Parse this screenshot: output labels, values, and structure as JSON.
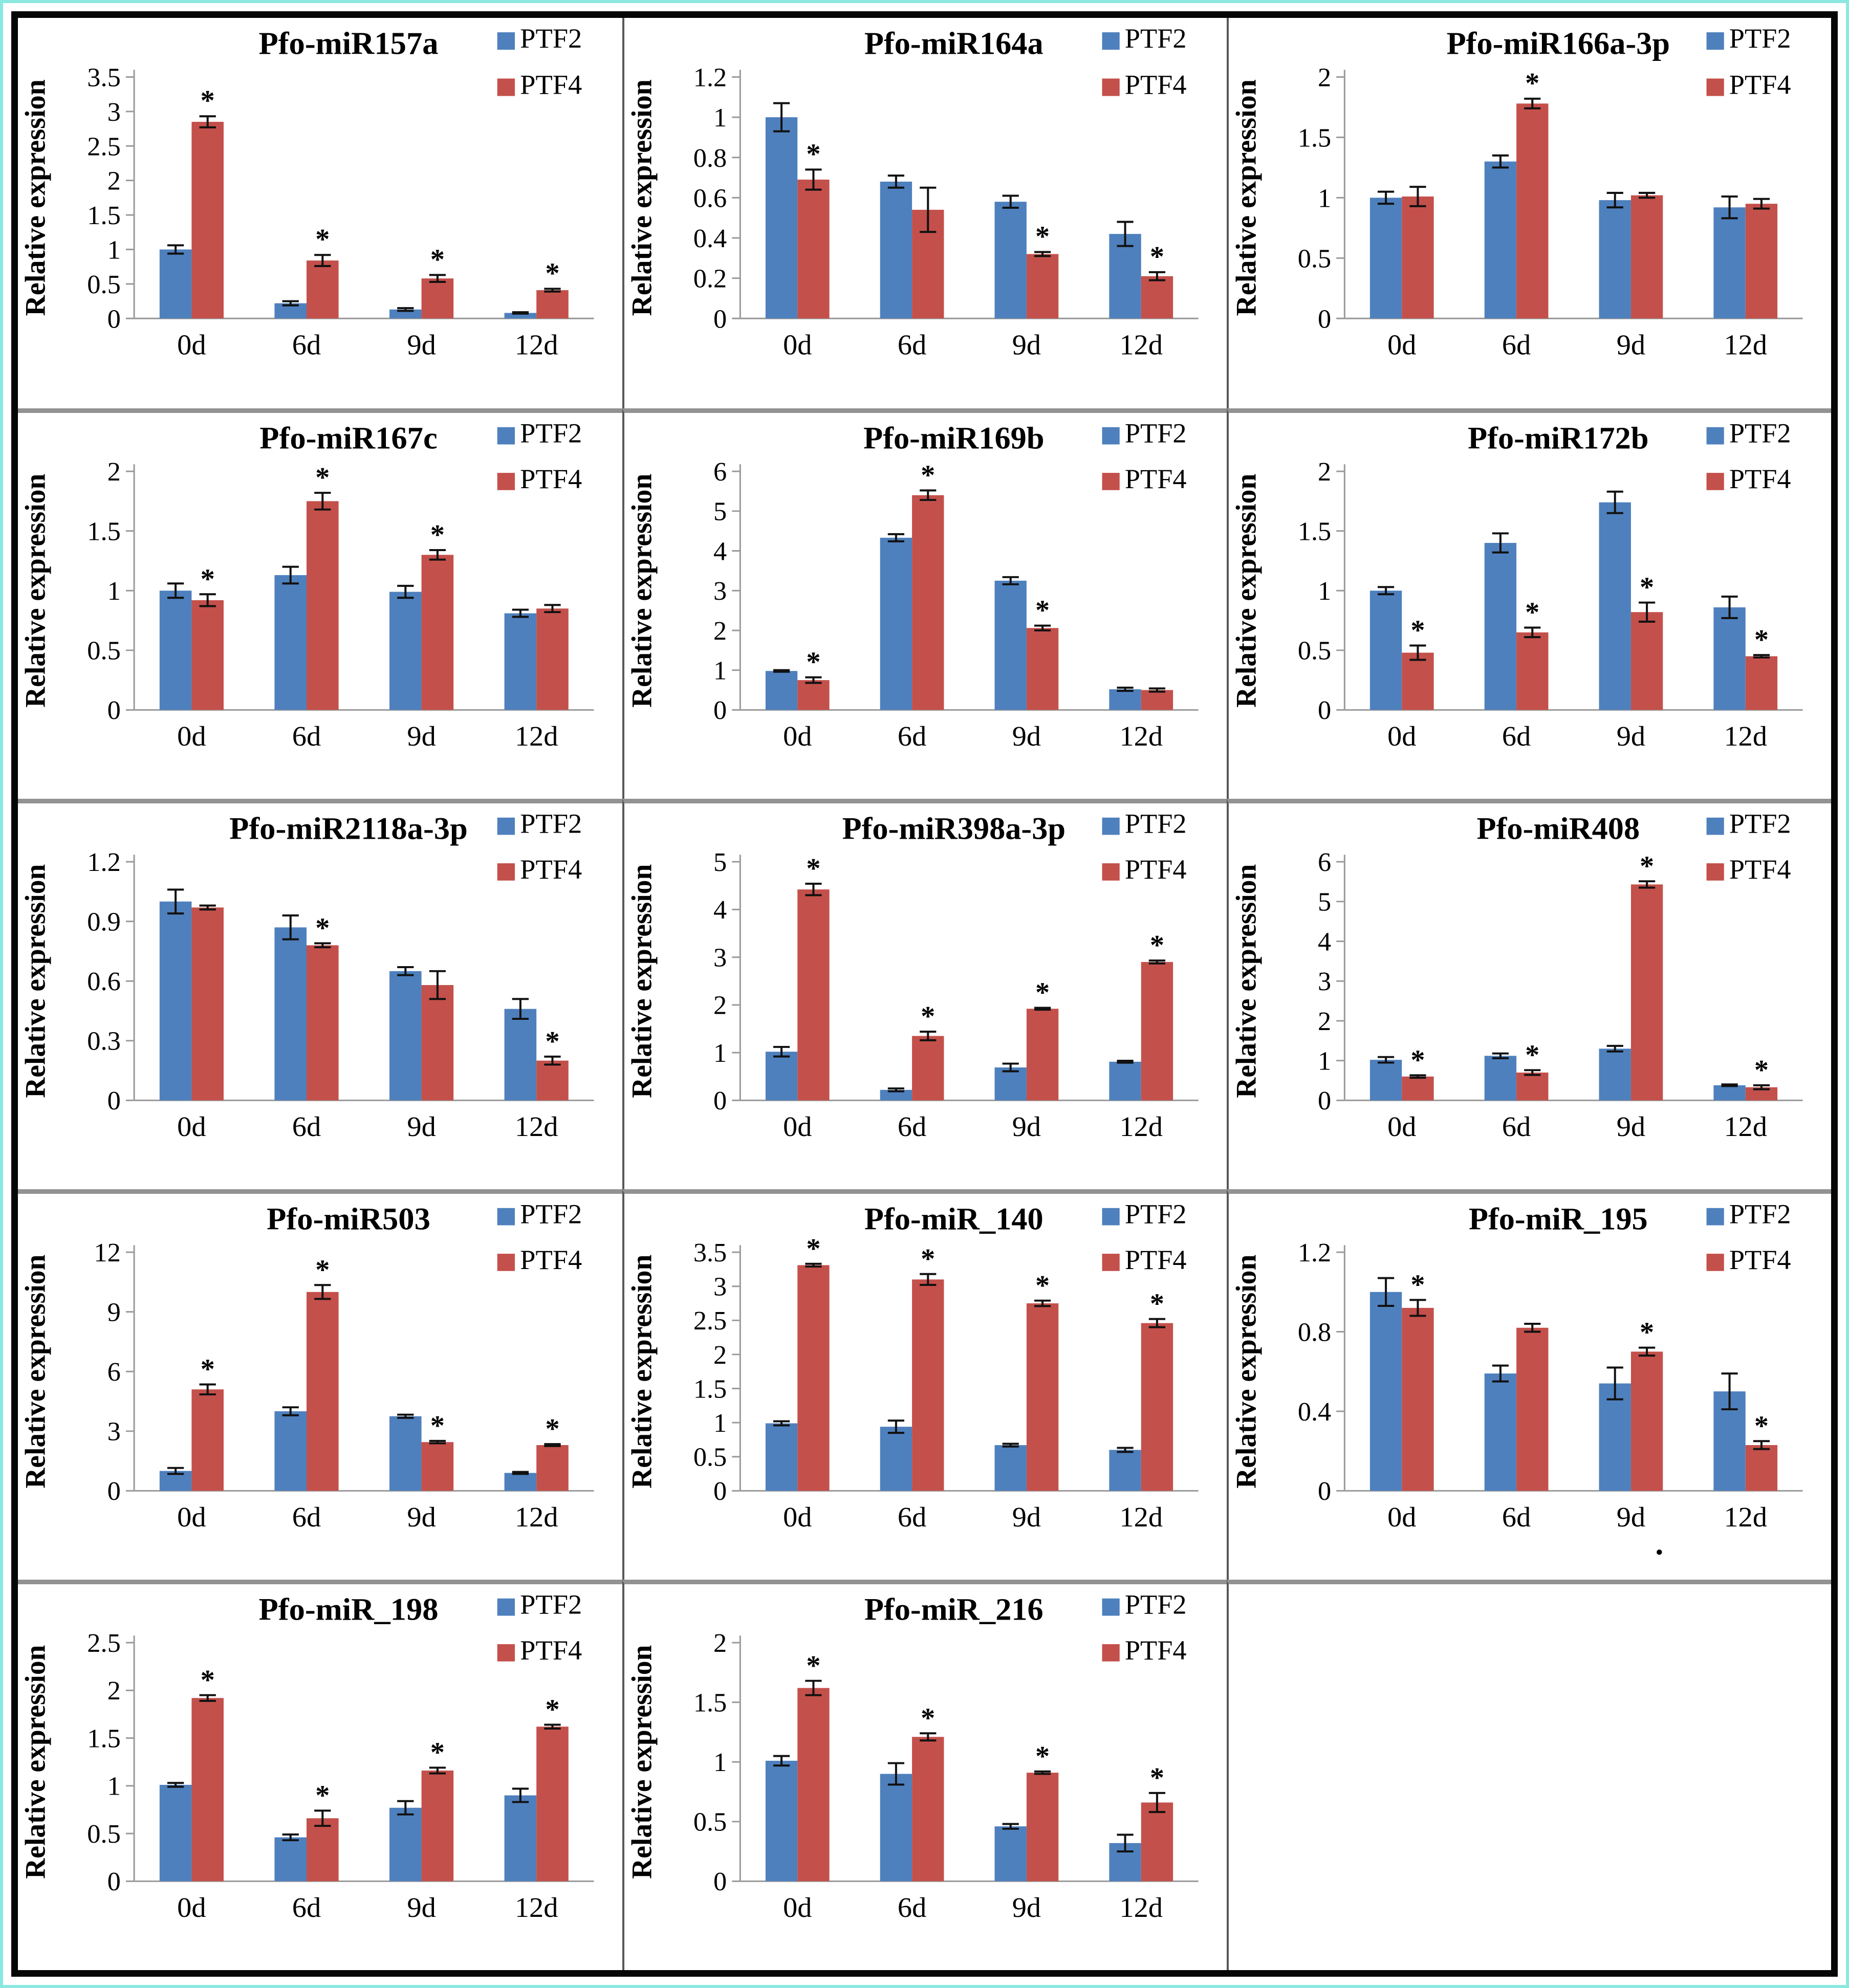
{
  "figure": {
    "ylabel": "Relative expression",
    "categories": [
      "0d",
      "6d",
      "9d",
      "12d"
    ],
    "legend": [
      "PTF2",
      "PTF4"
    ],
    "colors": {
      "ptf2": "#4E80BD",
      "ptf4": "#C4504B",
      "axis": "#9a9a9a",
      "error_bar": "#111111",
      "text": "#000000",
      "outer_frame_cyan": "#8ae8e0",
      "outer_frame_black": "#060606",
      "row_divider": "#929292",
      "col_divider": "#585858"
    },
    "sig_mark": "*"
  },
  "chart_data": [
    {
      "type": "bar",
      "title": "Pfo-miR157a",
      "ylabel": "Relative expression",
      "categories": [
        "0d",
        "6d",
        "9d",
        "12d"
      ],
      "ylim": [
        0,
        3.5
      ],
      "ytick_step": 0.5,
      "legend_position": "top-right",
      "grid": false,
      "series": [
        {
          "name": "PTF2",
          "values": [
            1.0,
            0.22,
            0.13,
            0.08
          ],
          "errors": [
            0.06,
            0.03,
            0.02,
            0.01
          ],
          "sig": [
            false,
            false,
            false,
            false
          ]
        },
        {
          "name": "PTF4",
          "values": [
            2.85,
            0.84,
            0.58,
            0.41
          ],
          "errors": [
            0.08,
            0.08,
            0.05,
            0.02
          ],
          "sig": [
            true,
            true,
            true,
            true
          ]
        }
      ]
    },
    {
      "type": "bar",
      "title": "Pfo-miR164a",
      "ylabel": "Relative expression",
      "categories": [
        "0d",
        "6d",
        "9d",
        "12d"
      ],
      "ylim": [
        0,
        1.2
      ],
      "ytick_step": 0.2,
      "legend_position": "top-right",
      "grid": false,
      "series": [
        {
          "name": "PTF2",
          "values": [
            1.0,
            0.68,
            0.58,
            0.42
          ],
          "errors": [
            0.07,
            0.03,
            0.03,
            0.06
          ],
          "sig": [
            false,
            false,
            false,
            false
          ]
        },
        {
          "name": "PTF4",
          "values": [
            0.69,
            0.54,
            0.32,
            0.21
          ],
          "errors": [
            0.05,
            0.11,
            0.01,
            0.02
          ],
          "sig": [
            true,
            false,
            true,
            true
          ]
        }
      ]
    },
    {
      "type": "bar",
      "title": "Pfo-miR166a-3p",
      "ylabel": "Relative expression",
      "categories": [
        "0d",
        "6d",
        "9d",
        "12d"
      ],
      "ylim": [
        0,
        2
      ],
      "ytick_step": 0.5,
      "legend_position": "top-right",
      "grid": false,
      "series": [
        {
          "name": "PTF2",
          "values": [
            1.0,
            1.3,
            0.98,
            0.92
          ],
          "errors": [
            0.05,
            0.05,
            0.06,
            0.09
          ],
          "sig": [
            false,
            false,
            false,
            false
          ]
        },
        {
          "name": "PTF4",
          "values": [
            1.01,
            1.78,
            1.02,
            0.95
          ],
          "errors": [
            0.08,
            0.04,
            0.02,
            0.04
          ],
          "sig": [
            false,
            true,
            false,
            false
          ]
        }
      ]
    },
    {
      "type": "bar",
      "title": "Pfo-miR167c",
      "ylabel": "Relative expression",
      "categories": [
        "0d",
        "6d",
        "9d",
        "12d"
      ],
      "ylim": [
        0,
        2
      ],
      "ytick_step": 0.5,
      "legend_position": "top-right",
      "grid": false,
      "series": [
        {
          "name": "PTF2",
          "values": [
            1.0,
            1.13,
            0.99,
            0.81
          ],
          "errors": [
            0.06,
            0.07,
            0.05,
            0.03
          ],
          "sig": [
            false,
            false,
            false,
            false
          ]
        },
        {
          "name": "PTF4",
          "values": [
            0.92,
            1.75,
            1.3,
            0.85
          ],
          "errors": [
            0.05,
            0.07,
            0.04,
            0.03
          ],
          "sig": [
            true,
            true,
            true,
            false
          ]
        }
      ]
    },
    {
      "type": "bar",
      "title": "Pfo-miR169b",
      "ylabel": "Relative expression",
      "categories": [
        "0d",
        "6d",
        "9d",
        "12d"
      ],
      "ylim": [
        0,
        6
      ],
      "ytick_step": 1,
      "legend_position": "top-right",
      "grid": false,
      "series": [
        {
          "name": "PTF2",
          "values": [
            0.98,
            4.33,
            3.25,
            0.52
          ],
          "errors": [
            0.02,
            0.09,
            0.09,
            0.04
          ],
          "sig": [
            false,
            false,
            false,
            false
          ]
        },
        {
          "name": "PTF4",
          "values": [
            0.75,
            5.4,
            2.06,
            0.5
          ],
          "errors": [
            0.07,
            0.12,
            0.06,
            0.04
          ],
          "sig": [
            true,
            true,
            true,
            false
          ]
        }
      ]
    },
    {
      "type": "bar",
      "title": "Pfo-miR172b",
      "ylabel": "Relative expression",
      "categories": [
        "0d",
        "6d",
        "9d",
        "12d"
      ],
      "ylim": [
        0,
        2
      ],
      "ytick_step": 0.5,
      "legend_position": "top-right",
      "grid": false,
      "series": [
        {
          "name": "PTF2",
          "values": [
            1.0,
            1.4,
            1.74,
            0.86
          ],
          "errors": [
            0.03,
            0.08,
            0.09,
            0.09
          ],
          "sig": [
            false,
            false,
            false,
            false
          ]
        },
        {
          "name": "PTF4",
          "values": [
            0.48,
            0.65,
            0.82,
            0.45
          ],
          "errors": [
            0.06,
            0.04,
            0.08,
            0.01
          ],
          "sig": [
            true,
            true,
            true,
            true
          ]
        }
      ]
    },
    {
      "type": "bar",
      "title": "Pfo-miR2118a-3p",
      "ylabel": "Relative expression",
      "categories": [
        "0d",
        "6d",
        "9d",
        "12d"
      ],
      "ylim": [
        0,
        1.2
      ],
      "ytick_step": 0.3,
      "legend_position": "top-right",
      "grid": false,
      "series": [
        {
          "name": "PTF2",
          "values": [
            1.0,
            0.87,
            0.65,
            0.46
          ],
          "errors": [
            0.06,
            0.06,
            0.02,
            0.05
          ],
          "sig": [
            false,
            false,
            false,
            false
          ]
        },
        {
          "name": "PTF4",
          "values": [
            0.97,
            0.78,
            0.58,
            0.2
          ],
          "errors": [
            0.01,
            0.01,
            0.07,
            0.02
          ],
          "sig": [
            false,
            true,
            false,
            true
          ]
        }
      ]
    },
    {
      "type": "bar",
      "title": "Pfo-miR398a-3p",
      "ylabel": "Relative expression",
      "categories": [
        "0d",
        "6d",
        "9d",
        "12d"
      ],
      "ylim": [
        0,
        5
      ],
      "ytick_step": 1,
      "legend_position": "top-right",
      "grid": false,
      "series": [
        {
          "name": "PTF2",
          "values": [
            1.02,
            0.22,
            0.69,
            0.81
          ],
          "errors": [
            0.1,
            0.03,
            0.08,
            0.02
          ],
          "sig": [
            false,
            false,
            false,
            false
          ]
        },
        {
          "name": "PTF4",
          "values": [
            4.42,
            1.35,
            1.92,
            2.9
          ],
          "errors": [
            0.12,
            0.09,
            0.02,
            0.03
          ],
          "sig": [
            true,
            true,
            true,
            true
          ]
        }
      ]
    },
    {
      "type": "bar",
      "title": "Pfo-miR408",
      "ylabel": "Relative expression",
      "categories": [
        "0d",
        "6d",
        "9d",
        "12d"
      ],
      "ylim": [
        0,
        6
      ],
      "ytick_step": 1,
      "legend_position": "top-right",
      "grid": false,
      "series": [
        {
          "name": "PTF2",
          "values": [
            1.02,
            1.12,
            1.3,
            0.38
          ],
          "errors": [
            0.07,
            0.06,
            0.07,
            0.02
          ],
          "sig": [
            false,
            false,
            false,
            false
          ]
        },
        {
          "name": "PTF4",
          "values": [
            0.6,
            0.7,
            5.43,
            0.33
          ],
          "errors": [
            0.03,
            0.06,
            0.08,
            0.05
          ],
          "sig": [
            true,
            true,
            true,
            true
          ]
        }
      ]
    },
    {
      "type": "bar",
      "title": "Pfo-miR503",
      "ylabel": "Relative expression",
      "categories": [
        "0d",
        "6d",
        "9d",
        "12d"
      ],
      "ylim": [
        0,
        12
      ],
      "ytick_step": 3,
      "legend_position": "top-right",
      "grid": false,
      "series": [
        {
          "name": "PTF2",
          "values": [
            1.0,
            4.0,
            3.75,
            0.9
          ],
          "errors": [
            0.15,
            0.2,
            0.08,
            0.05
          ],
          "sig": [
            false,
            false,
            false,
            false
          ]
        },
        {
          "name": "PTF4",
          "values": [
            5.1,
            10.0,
            2.45,
            2.3
          ],
          "errors": [
            0.25,
            0.35,
            0.06,
            0.05
          ],
          "sig": [
            true,
            true,
            true,
            true
          ]
        }
      ]
    },
    {
      "type": "bar",
      "title": "Pfo-miR_140",
      "ylabel": "Relative expression",
      "categories": [
        "0d",
        "6d",
        "9d",
        "12d"
      ],
      "ylim": [
        0,
        3.5
      ],
      "ytick_step": 0.5,
      "legend_position": "top-right",
      "grid": false,
      "series": [
        {
          "name": "PTF2",
          "values": [
            0.99,
            0.94,
            0.67,
            0.6
          ],
          "errors": [
            0.03,
            0.09,
            0.02,
            0.03
          ],
          "sig": [
            false,
            false,
            false,
            false
          ]
        },
        {
          "name": "PTF4",
          "values": [
            3.31,
            3.1,
            2.75,
            2.46
          ],
          "errors": [
            0.02,
            0.08,
            0.04,
            0.06
          ],
          "sig": [
            true,
            true,
            true,
            true
          ]
        }
      ]
    },
    {
      "type": "bar",
      "title": "Pfo-miR_195",
      "ylabel": "Relative expression",
      "categories": [
        "0d",
        "6d",
        "9d",
        "12d"
      ],
      "ylim": [
        0,
        1.2
      ],
      "ytick_step": 0.4,
      "legend_position": "top-right",
      "grid": false,
      "xtick_note": {
        "index": 2,
        "text": "."
      },
      "series": [
        {
          "name": "PTF2",
          "values": [
            1.0,
            0.59,
            0.54,
            0.5
          ],
          "errors": [
            0.07,
            0.04,
            0.08,
            0.09
          ],
          "sig": [
            false,
            false,
            false,
            false
          ]
        },
        {
          "name": "PTF4",
          "values": [
            0.92,
            0.82,
            0.7,
            0.23
          ],
          "errors": [
            0.04,
            0.02,
            0.02,
            0.02
          ],
          "sig": [
            true,
            false,
            true,
            true
          ]
        }
      ]
    },
    {
      "type": "bar",
      "title": "Pfo-miR_198",
      "ylabel": "Relative expression",
      "categories": [
        "0d",
        "6d",
        "9d",
        "12d"
      ],
      "ylim": [
        0,
        2.5
      ],
      "ytick_step": 0.5,
      "legend_position": "top-right",
      "grid": false,
      "series": [
        {
          "name": "PTF2",
          "values": [
            1.01,
            0.46,
            0.77,
            0.9
          ],
          "errors": [
            0.02,
            0.03,
            0.07,
            0.07
          ],
          "sig": [
            false,
            false,
            false,
            false
          ]
        },
        {
          "name": "PTF4",
          "values": [
            1.92,
            0.66,
            1.16,
            1.62
          ],
          "errors": [
            0.03,
            0.08,
            0.03,
            0.02
          ],
          "sig": [
            true,
            true,
            true,
            true
          ]
        }
      ]
    },
    {
      "type": "bar",
      "title": "Pfo-miR_216",
      "ylabel": "Relative expression",
      "categories": [
        "0d",
        "6d",
        "9d",
        "12d"
      ],
      "ylim": [
        0,
        2
      ],
      "ytick_step": 0.5,
      "legend_position": "top-right",
      "grid": false,
      "series": [
        {
          "name": "PTF2",
          "values": [
            1.01,
            0.9,
            0.46,
            0.32
          ],
          "errors": [
            0.04,
            0.09,
            0.02,
            0.07
          ],
          "sig": [
            false,
            false,
            false,
            false
          ]
        },
        {
          "name": "PTF4",
          "values": [
            1.62,
            1.21,
            0.91,
            0.66
          ],
          "errors": [
            0.06,
            0.03,
            0.01,
            0.08
          ],
          "sig": [
            true,
            true,
            true,
            true
          ]
        }
      ]
    }
  ]
}
